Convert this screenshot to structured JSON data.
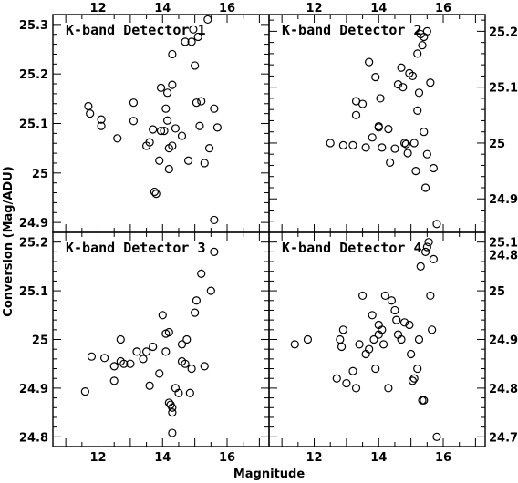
{
  "chart_data": {
    "type": "scatter",
    "xlabel": "Magnitude",
    "ylabel": "Conversion (Mag/ADU)",
    "xlim": [
      10.6,
      17.3
    ],
    "xticks": [
      12,
      14,
      16
    ],
    "grid": false,
    "panels": [
      {
        "label": "K-band Detector 1",
        "ylim": [
          24.88,
          25.32
        ],
        "yticks": [
          24.9,
          25,
          25.1,
          25.2,
          25.3
        ],
        "points": [
          [
            11.7,
            25.135
          ],
          [
            11.75,
            25.12
          ],
          [
            12.1,
            25.108
          ],
          [
            12.1,
            25.095
          ],
          [
            12.6,
            25.07
          ],
          [
            13.1,
            25.142
          ],
          [
            13.1,
            25.105
          ],
          [
            13.5,
            25.055
          ],
          [
            13.6,
            25.062
          ],
          [
            13.7,
            25.088
          ],
          [
            13.75,
            24.962
          ],
          [
            13.8,
            24.958
          ],
          [
            13.95,
            25.172
          ],
          [
            13.95,
            25.085
          ],
          [
            13.9,
            25.025
          ],
          [
            14.05,
            25.085
          ],
          [
            14.1,
            25.13
          ],
          [
            14.15,
            25.162
          ],
          [
            14.15,
            25.106
          ],
          [
            14.2,
            25.05
          ],
          [
            14.2,
            25.008
          ],
          [
            14.3,
            25.055
          ],
          [
            14.3,
            25.178
          ],
          [
            14.3,
            25.24
          ],
          [
            14.4,
            25.09
          ],
          [
            14.6,
            25.075
          ],
          [
            14.7,
            25.265
          ],
          [
            14.8,
            25.025
          ],
          [
            14.9,
            25.265
          ],
          [
            14.95,
            25.29
          ],
          [
            15.0,
            25.217
          ],
          [
            15.05,
            25.142
          ],
          [
            15.1,
            25.275
          ],
          [
            15.15,
            25.095
          ],
          [
            15.2,
            25.145
          ],
          [
            15.3,
            25.02
          ],
          [
            15.4,
            25.31
          ],
          [
            15.45,
            25.05
          ],
          [
            15.6,
            25.13
          ],
          [
            15.7,
            25.092
          ],
          [
            15.6,
            24.905
          ]
        ]
      },
      {
        "label": "K-band Detector 2",
        "ylim": [
          24.84,
          25.23
        ],
        "yticks": [
          24.8,
          24.9,
          25,
          25.1,
          25.2
        ],
        "points": [
          [
            12.5,
            25.0
          ],
          [
            12.9,
            24.996
          ],
          [
            13.2,
            24.996
          ],
          [
            13.3,
            25.075
          ],
          [
            13.3,
            25.05
          ],
          [
            13.5,
            25.07
          ],
          [
            13.6,
            24.992
          ],
          [
            13.7,
            25.145
          ],
          [
            13.8,
            25.01
          ],
          [
            13.9,
            25.118
          ],
          [
            14.0,
            25.03
          ],
          [
            14.0,
            25.028
          ],
          [
            14.05,
            25.08
          ],
          [
            14.1,
            24.992
          ],
          [
            14.3,
            25.025
          ],
          [
            14.35,
            24.965
          ],
          [
            14.5,
            24.99
          ],
          [
            14.6,
            25.105
          ],
          [
            14.7,
            25.135
          ],
          [
            14.75,
            25.1
          ],
          [
            14.8,
            25.0
          ],
          [
            14.85,
            24.998
          ],
          [
            14.9,
            24.982
          ],
          [
            14.95,
            25.125
          ],
          [
            15.05,
            25.12
          ],
          [
            15.1,
            25.0
          ],
          [
            15.15,
            24.95
          ],
          [
            15.2,
            25.058
          ],
          [
            15.25,
            25.09
          ],
          [
            15.35,
            25.175
          ],
          [
            15.4,
            25.19
          ],
          [
            15.45,
            24.92
          ],
          [
            15.5,
            24.98
          ],
          [
            15.6,
            25.108
          ],
          [
            15.4,
            25.02
          ],
          [
            15.5,
            25.2
          ],
          [
            15.3,
            25.195
          ],
          [
            15.2,
            25.16
          ],
          [
            15.7,
            24.955
          ],
          [
            15.8,
            24.855
          ]
        ]
      },
      {
        "label": "K-band Detector 3",
        "ylim": [
          24.78,
          25.22
        ],
        "yticks": [
          24.8,
          24.9,
          25,
          25.1,
          25.2
        ],
        "points": [
          [
            11.6,
            24.893
          ],
          [
            11.8,
            24.965
          ],
          [
            12.2,
            24.962
          ],
          [
            12.5,
            24.945
          ],
          [
            12.5,
            24.915
          ],
          [
            12.7,
            24.955
          ],
          [
            12.7,
            25.0
          ],
          [
            12.8,
            24.95
          ],
          [
            13.0,
            24.95
          ],
          [
            13.2,
            24.975
          ],
          [
            13.4,
            24.96
          ],
          [
            13.5,
            24.975
          ],
          [
            13.6,
            24.905
          ],
          [
            13.7,
            24.985
          ],
          [
            13.9,
            24.93
          ],
          [
            14.0,
            25.05
          ],
          [
            14.1,
            24.975
          ],
          [
            14.1,
            25.012
          ],
          [
            14.2,
            25.015
          ],
          [
            14.2,
            24.87
          ],
          [
            14.25,
            24.866
          ],
          [
            14.3,
            24.86
          ],
          [
            14.3,
            24.808
          ],
          [
            14.3,
            24.85
          ],
          [
            14.4,
            24.9
          ],
          [
            14.5,
            24.89
          ],
          [
            14.6,
            24.955
          ],
          [
            14.6,
            24.99
          ],
          [
            14.7,
            24.95
          ],
          [
            14.75,
            25.0
          ],
          [
            14.85,
            24.89
          ],
          [
            14.9,
            24.94
          ],
          [
            15.0,
            25.055
          ],
          [
            15.05,
            25.08
          ],
          [
            15.2,
            25.135
          ],
          [
            15.3,
            24.945
          ],
          [
            15.5,
            25.1
          ],
          [
            15.6,
            25.18
          ]
        ]
      },
      {
        "label": "K-band Detector 4",
        "ylim": [
          24.68,
          25.12
        ],
        "yticks": [
          24.7,
          24.8,
          24.9,
          25,
          25.1
        ],
        "points": [
          [
            11.4,
            24.89
          ],
          [
            11.8,
            24.9
          ],
          [
            12.7,
            24.82
          ],
          [
            12.8,
            24.9
          ],
          [
            12.85,
            24.885
          ],
          [
            12.9,
            24.92
          ],
          [
            13.0,
            24.81
          ],
          [
            13.2,
            24.835
          ],
          [
            13.3,
            24.8
          ],
          [
            13.4,
            24.89
          ],
          [
            13.5,
            24.99
          ],
          [
            13.6,
            24.87
          ],
          [
            13.7,
            24.88
          ],
          [
            13.8,
            24.95
          ],
          [
            13.85,
            24.9
          ],
          [
            13.9,
            24.84
          ],
          [
            14.0,
            24.91
          ],
          [
            14.0,
            24.93
          ],
          [
            14.1,
            24.92
          ],
          [
            14.15,
            24.89
          ],
          [
            14.2,
            24.99
          ],
          [
            14.3,
            24.8
          ],
          [
            14.4,
            24.98
          ],
          [
            14.5,
            24.96
          ],
          [
            14.55,
            24.94
          ],
          [
            14.6,
            24.91
          ],
          [
            14.7,
            24.9
          ],
          [
            14.8,
            24.935
          ],
          [
            14.95,
            24.93
          ],
          [
            15.0,
            24.87
          ],
          [
            15.05,
            24.815
          ],
          [
            15.1,
            24.82
          ],
          [
            15.2,
            24.84
          ],
          [
            15.25,
            24.9
          ],
          [
            15.3,
            25.05
          ],
          [
            15.35,
            24.775
          ],
          [
            15.4,
            24.775
          ],
          [
            15.45,
            25.08
          ],
          [
            15.5,
            25.09
          ],
          [
            15.55,
            25.1
          ],
          [
            15.6,
            24.99
          ],
          [
            15.65,
            24.92
          ],
          [
            15.7,
            25.065
          ],
          [
            15.8,
            24.7
          ]
        ]
      }
    ]
  }
}
